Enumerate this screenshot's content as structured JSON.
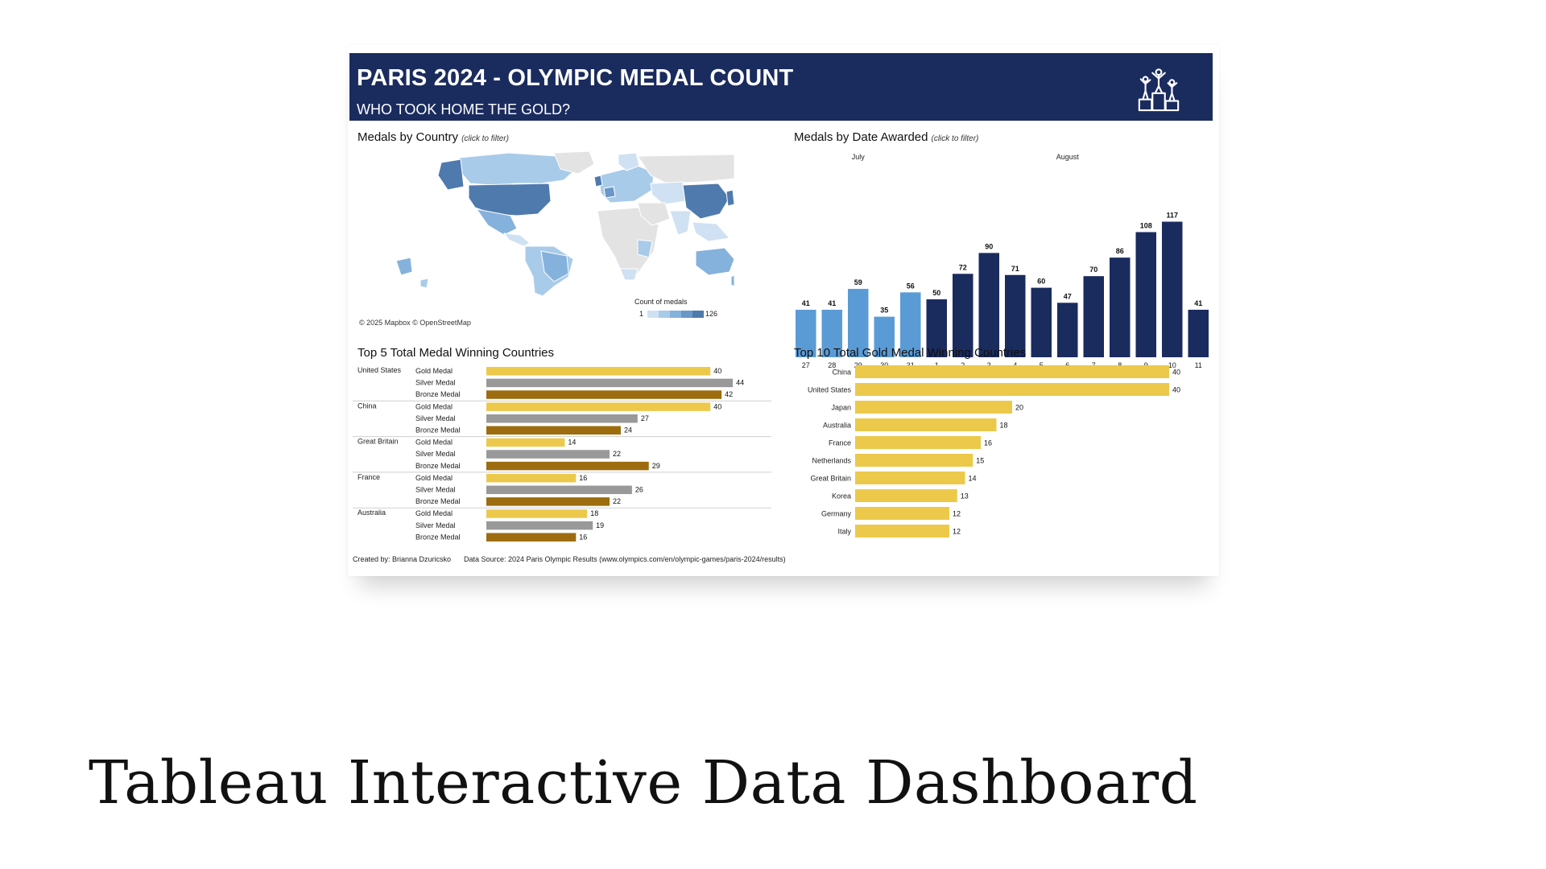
{
  "header": {
    "title": "PARIS 2024 - OLYMPIC MEDAL COUNT",
    "subtitle": "WHO TOOK HOME THE GOLD?",
    "icon": "podium-icon"
  },
  "map_panel": {
    "title": "Medals by Country",
    "hint": "(click to filter)",
    "credit": "© 2025 Mapbox © OpenStreetMap",
    "legend_title": "Count of medals",
    "legend_min": "1",
    "legend_max": "126",
    "legend_colors": [
      "#cfe1f2",
      "#a9cbea",
      "#85b2dc",
      "#6a97c8",
      "#4f7aad"
    ]
  },
  "date_panel": {
    "title": "Medals by Date Awarded",
    "hint": "(click to filter)"
  },
  "top5_panel": {
    "title": "Top 5 Total Medal Winning Countries"
  },
  "top10_panel": {
    "title": "Top 10 Total Gold Medal Winning Countries"
  },
  "footer": {
    "credit": "Created by: Brianna Dzuricsko",
    "source": "Data Source: 2024 Paris Olympic Results (www.olympics.com/en/olympic-games/paris-2024/results)"
  },
  "caption": "Tableau Interactive Data Dashboard",
  "colors": {
    "header_bg": "#1a2b5e",
    "july_bar": "#5b9bd5",
    "august_bar": "#1a2b5e",
    "gold": "#ecc94b",
    "silver": "#999999",
    "bronze": "#9c6c0e"
  },
  "chart_data": [
    {
      "type": "bar",
      "id": "medals-by-date",
      "groups": [
        {
          "label": "July",
          "categories": [
            "27",
            "28",
            "29",
            "30",
            "31"
          ]
        },
        {
          "label": "August",
          "categories": [
            "1",
            "2",
            "3",
            "4",
            "5",
            "6",
            "7",
            "8",
            "9",
            "10",
            "11"
          ]
        }
      ],
      "categories": [
        "27",
        "28",
        "29",
        "30",
        "31",
        "1",
        "2",
        "3",
        "4",
        "5",
        "6",
        "7",
        "8",
        "9",
        "10",
        "11"
      ],
      "values": [
        41,
        41,
        59,
        35,
        56,
        50,
        72,
        90,
        71,
        60,
        47,
        70,
        86,
        108,
        117,
        41
      ],
      "ylim": [
        0,
        125
      ]
    },
    {
      "type": "bar",
      "id": "top5-total",
      "orientation": "horizontal",
      "categories": [
        "United States",
        "China",
        "Great Britain",
        "France",
        "Australia"
      ],
      "series_labels": [
        "Gold Medal",
        "Silver Medal",
        "Bronze Medal"
      ],
      "values": [
        [
          40,
          44,
          42
        ],
        [
          40,
          27,
          24
        ],
        [
          14,
          22,
          29
        ],
        [
          16,
          26,
          22
        ],
        [
          18,
          19,
          16
        ]
      ],
      "xlim": [
        0,
        46
      ]
    },
    {
      "type": "bar",
      "id": "top10-gold",
      "orientation": "horizontal",
      "categories": [
        "China",
        "United States",
        "Japan",
        "Australia",
        "France",
        "Netherlands",
        "Great Britain",
        "Korea",
        "Germany",
        "Italy"
      ],
      "values": [
        40,
        40,
        20,
        18,
        16,
        15,
        14,
        13,
        12,
        12
      ],
      "xlim": [
        0,
        40
      ]
    }
  ]
}
